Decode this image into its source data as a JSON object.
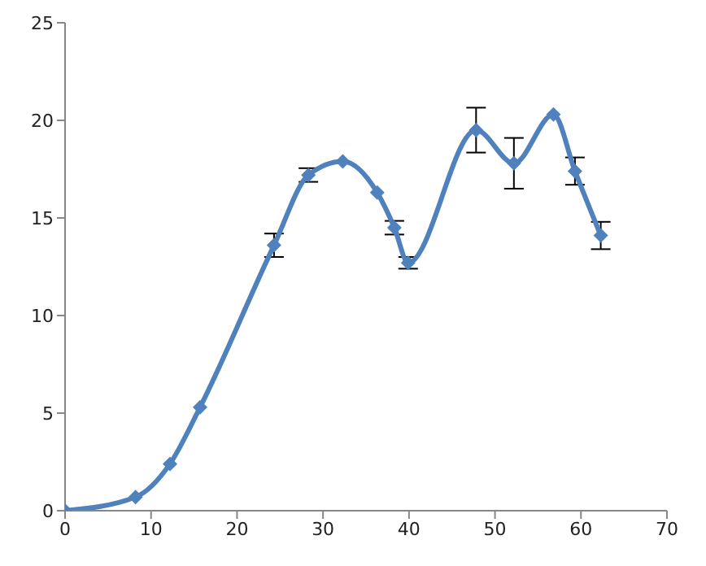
{
  "chart_data": {
    "type": "line",
    "x": [
      0,
      8.2,
      12.2,
      15.7,
      24.3,
      28.3,
      32.3,
      36.3,
      38.3,
      39.9,
      47.8,
      52.2,
      56.8,
      59.3,
      62.3
    ],
    "series": [
      {
        "color": "#4f81bd",
        "values": [
          0,
          0.7,
          2.4,
          5.3,
          13.6,
          17.2,
          17.9,
          16.3,
          14.5,
          12.7,
          19.5,
          17.8,
          20.3,
          17.4,
          14.1
        ],
        "errors": [
          null,
          null,
          null,
          null,
          0.6,
          0.35,
          null,
          null,
          0.35,
          0.3,
          1.15,
          1.3,
          null,
          0.7,
          0.7
        ]
      }
    ],
    "xlim": [
      0,
      70
    ],
    "xticks": [
      0,
      10,
      20,
      30,
      40,
      50,
      60,
      70
    ],
    "ylim": [
      0,
      25
    ],
    "yticks": [
      0,
      5,
      10,
      15,
      20,
      25
    ],
    "grid": false,
    "marker": "diamond",
    "line_style": "solid"
  }
}
